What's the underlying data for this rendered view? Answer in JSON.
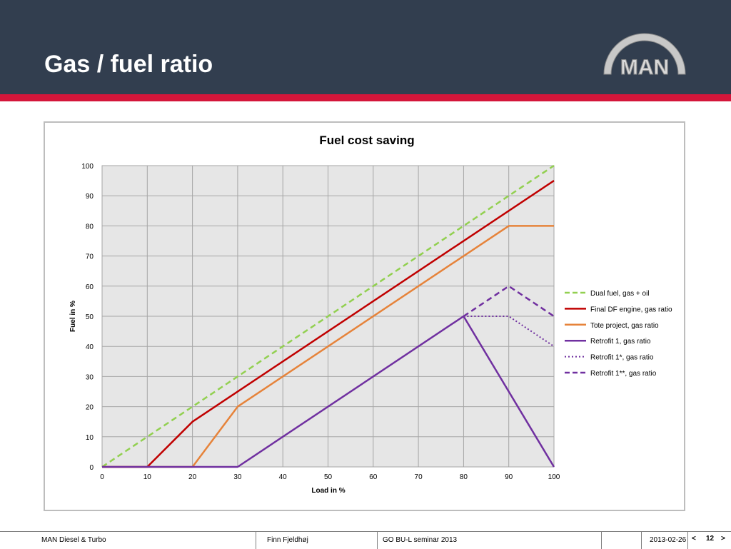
{
  "slide": {
    "title": "Gas / fuel ratio",
    "logo_text": "MAN",
    "colors": {
      "header_bg": "#323e4f",
      "accent_stripe": "#d4163a",
      "plot_bg": "#e6e6e6"
    }
  },
  "footer": {
    "company": "MAN Diesel & Turbo",
    "author": "Finn Fjeldhøj",
    "event": "GO BU-L seminar 2013",
    "date": "2013-02-26",
    "page_number": "12",
    "prev_label": "<",
    "next_label": ">"
  },
  "chart_data": {
    "type": "line",
    "title": "Fuel cost saving",
    "xlabel": "Load in %",
    "ylabel": "Fuel in %",
    "xlim": [
      0,
      100
    ],
    "ylim": [
      0,
      100
    ],
    "xticks": [
      0,
      10,
      20,
      30,
      40,
      50,
      60,
      70,
      80,
      90,
      100
    ],
    "yticks": [
      0,
      10,
      20,
      30,
      40,
      50,
      60,
      70,
      80,
      90,
      100
    ],
    "grid": true,
    "legend_position": "right",
    "series": [
      {
        "name": "Dual fuel, gas + oil",
        "color": "#92d050",
        "dash": "dashed",
        "points": [
          [
            0,
            0
          ],
          [
            100,
            100
          ]
        ]
      },
      {
        "name": "Final DF engine, gas ratio",
        "color": "#c00000",
        "dash": "solid",
        "points": [
          [
            0,
            0
          ],
          [
            10,
            0
          ],
          [
            20,
            15
          ],
          [
            100,
            95
          ]
        ]
      },
      {
        "name": "Tote project, gas ratio",
        "color": "#e6833a",
        "dash": "solid",
        "points": [
          [
            0,
            0
          ],
          [
            20,
            0
          ],
          [
            30,
            20
          ],
          [
            90,
            80
          ],
          [
            100,
            80
          ]
        ]
      },
      {
        "name": "Retrofit 1, gas ratio",
        "color": "#7030a0",
        "dash": "solid",
        "points": [
          [
            0,
            0
          ],
          [
            30,
            0
          ],
          [
            80,
            50
          ],
          [
            100,
            0
          ]
        ]
      },
      {
        "name": "Retrofit 1*, gas ratio",
        "color": "#7030a0",
        "dash": "dotted",
        "points": [
          [
            80,
            50
          ],
          [
            90,
            50
          ],
          [
            100,
            40
          ]
        ]
      },
      {
        "name": "Retrofit 1**, gas ratio",
        "color": "#7030a0",
        "dash": "dashed",
        "points": [
          [
            80,
            50
          ],
          [
            90,
            60
          ],
          [
            100,
            50
          ]
        ]
      }
    ]
  }
}
